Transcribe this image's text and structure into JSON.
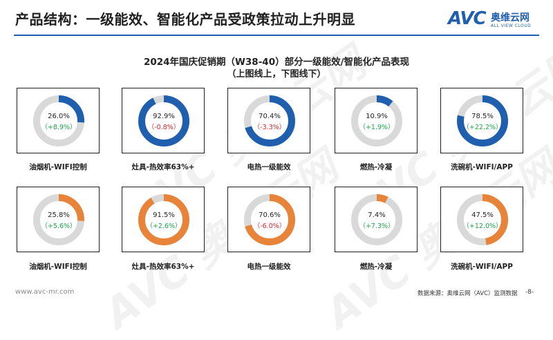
{
  "header": {
    "title": "产品结构：一级能效、智能化产品受政策拉动上升明显"
  },
  "logo": {
    "mark": "AVC",
    "cn": "奥维云网",
    "en": "ALL VIEW CLOUD"
  },
  "watermark": "AVC 奥维云网",
  "colors": {
    "top_ring": "#1f5fae",
    "bottom_ring": "#e8843a",
    "track": "#d9d9d9",
    "positive": "#1aa345",
    "negative": "#d9242b"
  },
  "chart_data": {
    "type": "pie",
    "title": "2024年国庆促销期（W38-40）部分一级能效/智能化产品表现",
    "subtitle": "（上图线上，下图线下）",
    "rows": [
      {
        "color": "#1f5fae",
        "items": [
          {
            "label": "油烟机-WIFI控制",
            "value": 26.0,
            "value_text": "26.0%",
            "delta": 8.9,
            "delta_text": "（+8.9%）"
          },
          {
            "label": "灶具-热效率63%+",
            "value": 92.9,
            "value_text": "92.9%",
            "delta": -0.8,
            "delta_text": "（-0.8%）"
          },
          {
            "label": "电热一级能效",
            "value": 70.4,
            "value_text": "70.4%",
            "delta": -3.3,
            "delta_text": "（-3.3%）"
          },
          {
            "label": "燃热-冷凝",
            "value": 10.9,
            "value_text": "10.9%",
            "delta": 1.9,
            "delta_text": "（+1.9%）"
          },
          {
            "label": "洗碗机-WIFI/APP",
            "value": 78.5,
            "value_text": "78.5%",
            "delta": 22.2,
            "delta_text": "（+22.2%）"
          }
        ]
      },
      {
        "color": "#e8843a",
        "items": [
          {
            "label": "油烟机-WIFI控制",
            "value": 25.8,
            "value_text": "25.8%",
            "delta": 5.6,
            "delta_text": "（+5.6%）"
          },
          {
            "label": "灶具-热效率63%+",
            "value": 91.5,
            "value_text": "91.5%",
            "delta": 2.6,
            "delta_text": "（+2.6%）"
          },
          {
            "label": "电热一级能效",
            "value": 70.6,
            "value_text": "70.6%",
            "delta": -6.0,
            "delta_text": "（-6.0%）"
          },
          {
            "label": "燃热-冷凝",
            "value": 7.4,
            "value_text": "7.4%",
            "delta": 7.3,
            "delta_text": "（+7.3%）"
          },
          {
            "label": "洗碗机-WIFI/APP",
            "value": 47.5,
            "value_text": "47.5%",
            "delta": 12.0,
            "delta_text": "（+12.0%）"
          }
        ]
      }
    ]
  },
  "footer": {
    "url": "www.avc-mr.com",
    "source": "数据来源：奥维云网（AVC）监测数据",
    "page": "-8-"
  }
}
